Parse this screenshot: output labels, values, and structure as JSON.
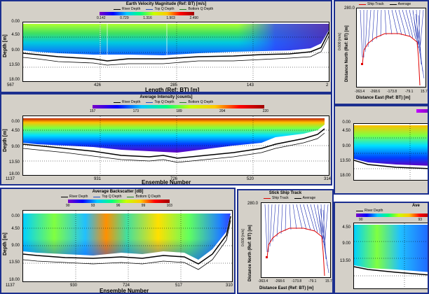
{
  "panel1": {
    "title": "Earth Velocity Magnitude (Ref: BT) [m/s]",
    "legend": [
      "River Depth",
      "Top Q Depth",
      "Bottom Q Depth"
    ],
    "colorbar": [
      "0.142",
      "0.729",
      "1.316",
      "1.903",
      "2.490"
    ],
    "yticks": [
      "0.00",
      "4.50",
      "9.00",
      "13.50",
      "18.00"
    ],
    "xticks": [
      "567",
      "426",
      "285",
      "143",
      "2"
    ],
    "ylabel": "Depth [m]",
    "xlabel": "Length (Ref: BT) [m]"
  },
  "panel2": {
    "title": "Average Intensity [counts]",
    "legend": [
      "River Depth",
      "Top Q Depth",
      "Bottom Q Depth"
    ],
    "colorbar": [
      "157",
      "173",
      "189",
      "204",
      "220"
    ],
    "yticks": [
      "0.00",
      "4.50",
      "9.00",
      "13.50",
      "18.00"
    ],
    "xticks": [
      "1137",
      "931",
      "726",
      "520",
      "314"
    ],
    "ylabel": "Depth [m]",
    "xlabel": "Ensemble Number"
  },
  "panel3": {
    "title": "Average Backscatter [dB]",
    "legend": [
      "River Depth",
      "Top Q Depth",
      "Bottom Q Depth"
    ],
    "colorbar": [
      "90",
      "93",
      "96",
      "99",
      "103"
    ],
    "yticks": [
      "0.00",
      "4.50",
      "9.00",
      "13.50",
      "18.00"
    ],
    "xticks": [
      "1137",
      "930",
      "724",
      "517",
      "310"
    ],
    "ylabel": "Depth [m]",
    "xlabel": "Ensemble Number"
  },
  "track1": {
    "title": "Stick Ship Track",
    "legend": [
      "Ship Track",
      "Average"
    ],
    "scale": "0.600 [m/s]",
    "yticks": [
      "280.0",
      "",
      ""
    ],
    "xticks": [
      "-363.4",
      "-268.6",
      "-173.8",
      "-79.1",
      "15.7"
    ],
    "ylabel": "Distance North (Ref: BT) [m]",
    "xlabel": "Distance East (Ref: BT) [m]"
  },
  "track2": {
    "title": "Stick Ship Track",
    "legend": [
      "Ship Track",
      "Average"
    ],
    "scale": "0.600 [m/s]",
    "yticks": [
      "280.0"
    ],
    "xticks": [
      "-363.4",
      "-268.6",
      "-173.8",
      "-79.1",
      "15.7"
    ],
    "ylabel": "Distance North (Ref: BT) [m]",
    "xlabel": "Distance East (Ref: BT) [m]"
  },
  "right2": {
    "yticks": [
      "0.00",
      "4.50",
      "9.00",
      "13.50",
      "18.00"
    ]
  },
  "right3": {
    "title": "Ave",
    "legend": [
      "River Depth"
    ],
    "colorbar": [
      "90",
      "93"
    ],
    "yticks": [
      "4.50",
      "9.00",
      "13.50"
    ]
  }
}
